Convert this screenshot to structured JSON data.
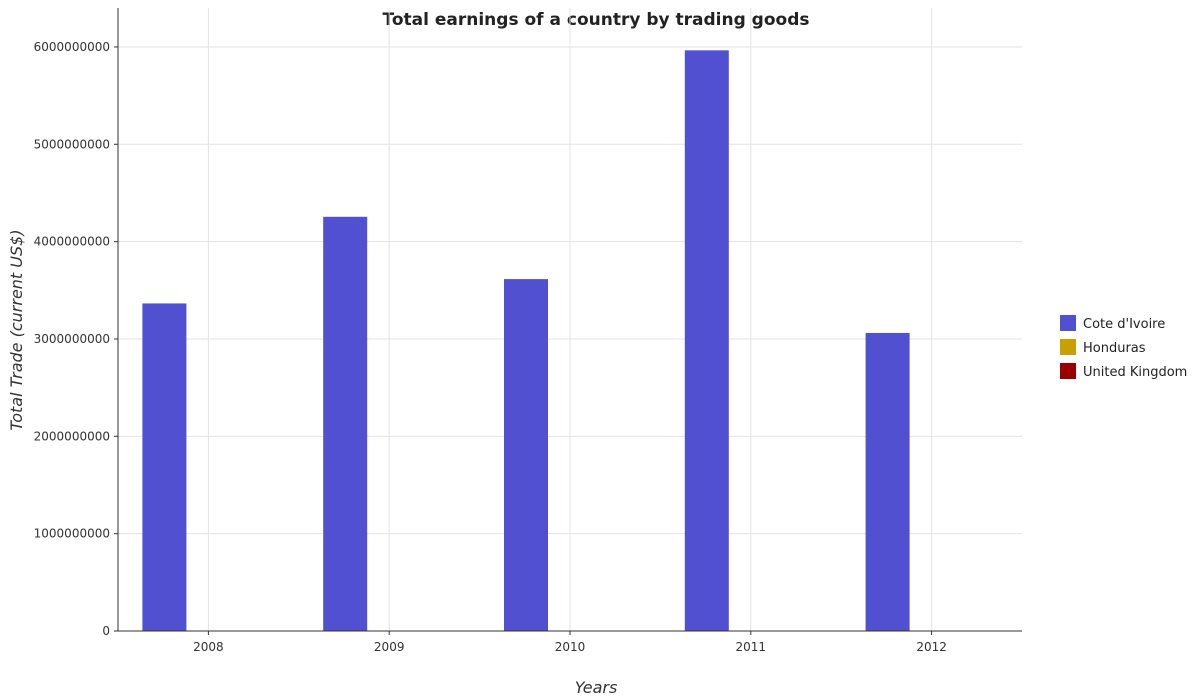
{
  "chart_data": {
    "type": "bar",
    "title": "Total earnings of a country by trading goods",
    "xlabel": "Years",
    "ylabel": "Total Trade (current US$)",
    "categories": [
      "2008",
      "2009",
      "2010",
      "2011",
      "2012"
    ],
    "ylim": [
      0,
      6400000000
    ],
    "yticks": [
      0,
      1000000000,
      2000000000,
      3000000000,
      4000000000,
      5000000000,
      6000000000
    ],
    "ytick_labels": [
      "0",
      "1000000000",
      "2000000000",
      "3000000000",
      "4000000000",
      "5000000000",
      "6000000000"
    ],
    "grid": true,
    "legend_position": "right",
    "series": [
      {
        "name": "Cote d'Ivoire",
        "color": "#5050d0",
        "values": [
          3365000000,
          4255000000,
          3615000000,
          5965000000,
          3062000000
        ]
      },
      {
        "name": "Honduras",
        "color": "#c8a000",
        "values": [
          0,
          0,
          0,
          0,
          0
        ]
      },
      {
        "name": "United Kingdom",
        "color": "#9b0000",
        "values": [
          0,
          0,
          0,
          0,
          0
        ]
      }
    ]
  }
}
